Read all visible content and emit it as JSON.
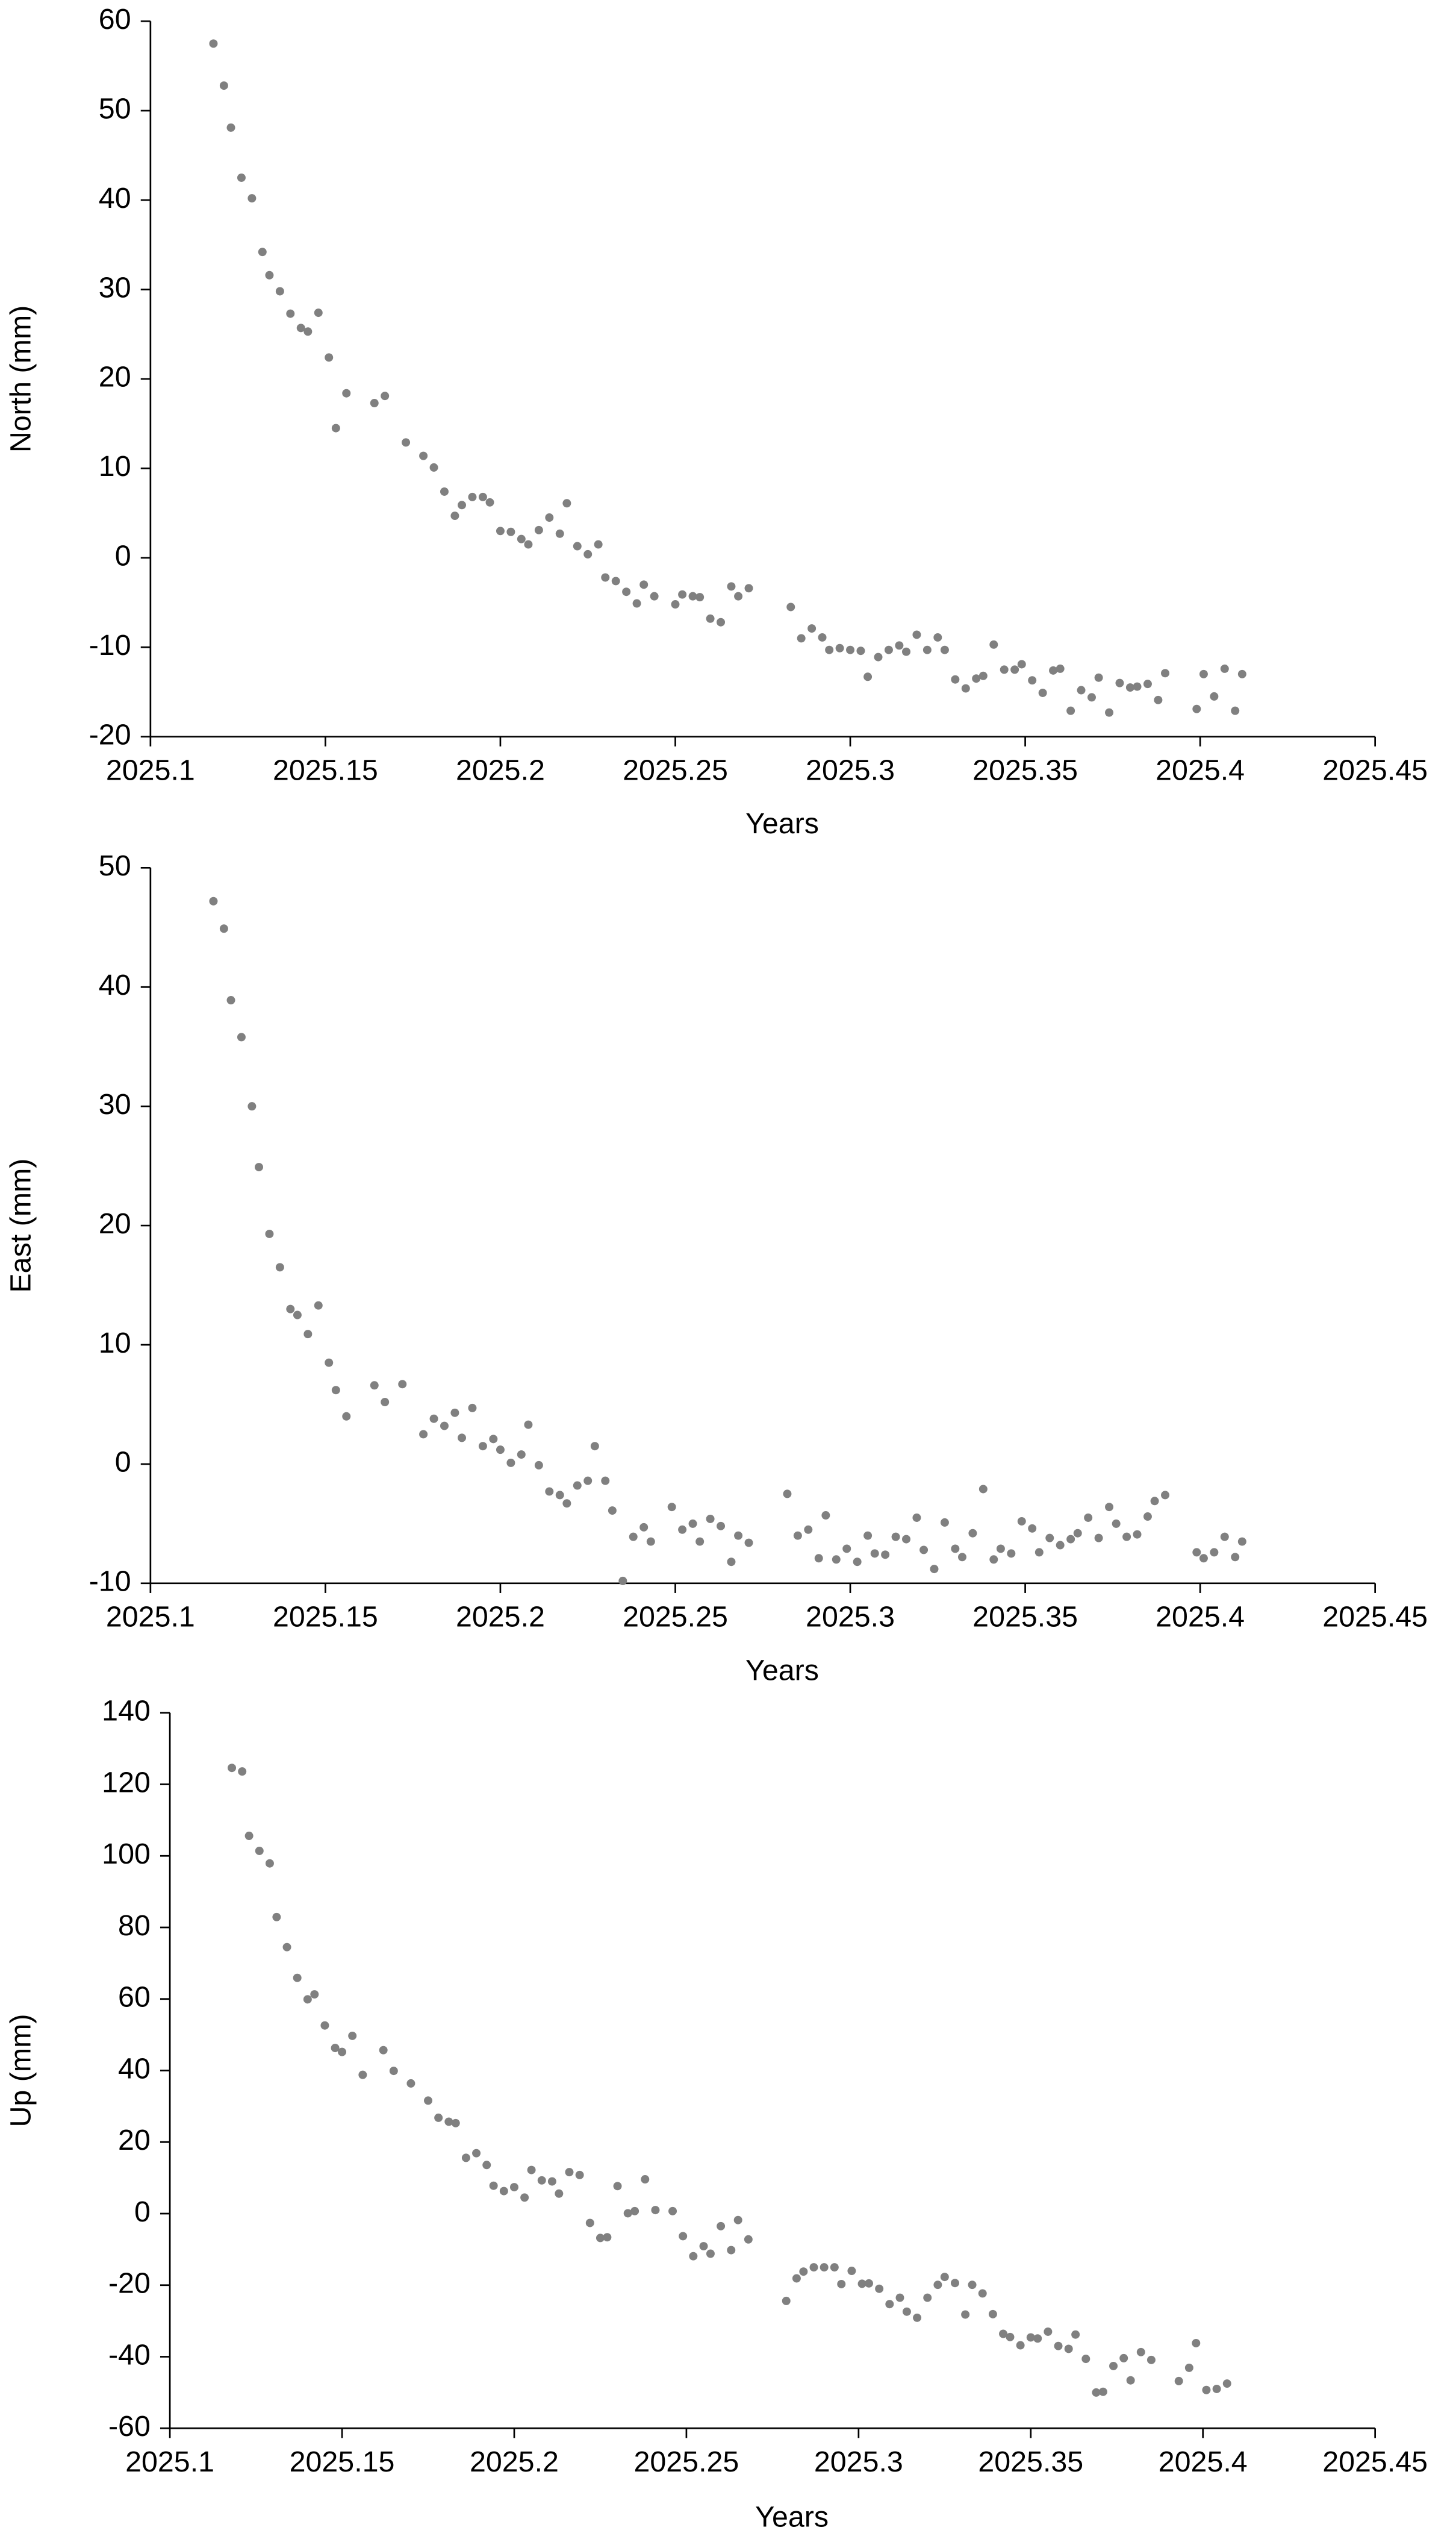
{
  "chart_data": [
    {
      "type": "scatter",
      "x_label": "Years",
      "y_label": "North (mm)",
      "color": "#808080",
      "xlim": [
        2025.1,
        2025.45
      ],
      "xticks": [
        2025.1,
        2025.15,
        2025.2,
        2025.25,
        2025.3,
        2025.35,
        2025.4,
        2025.45
      ],
      "ylim": [
        -20,
        60
      ],
      "yticks": [
        -20,
        -10,
        0,
        10,
        20,
        30,
        40,
        50,
        60
      ],
      "x": [
        2025.118,
        2025.121,
        2025.123,
        2025.126,
        2025.129,
        2025.132,
        2025.134,
        2025.137,
        2025.14,
        2025.143,
        2025.145,
        2025.148,
        2025.151,
        2025.153,
        2025.156,
        2025.164,
        2025.167,
        2025.173,
        2025.178,
        2025.181,
        2025.184,
        2025.187,
        2025.189,
        2025.192,
        2025.195,
        2025.197,
        2025.2,
        2025.203,
        2025.206,
        2025.208,
        2025.211,
        2025.214,
        2025.217,
        2025.219,
        2025.222,
        2025.225,
        2025.228,
        2025.23,
        2025.233,
        2025.236,
        2025.239,
        2025.241,
        2025.244,
        2025.25,
        2025.252,
        2025.255,
        2025.257,
        2025.26,
        2025.263,
        2025.266,
        2025.268,
        2025.271,
        2025.283,
        2025.286,
        2025.289,
        2025.292,
        2025.294,
        2025.297,
        2025.3,
        2025.303,
        2025.305,
        2025.308,
        2025.311,
        2025.314,
        2025.316,
        2025.319,
        2025.322,
        2025.325,
        2025.327,
        2025.33,
        2025.333,
        2025.336,
        2025.338,
        2025.341,
        2025.344,
        2025.347,
        2025.349,
        2025.352,
        2025.355,
        2025.358,
        2025.36,
        2025.363,
        2025.366,
        2025.369,
        2025.371,
        2025.374,
        2025.377,
        2025.38,
        2025.382,
        2025.385,
        2025.388,
        2025.39,
        2025.399,
        2025.401,
        2025.404,
        2025.407,
        2025.41,
        2025.412
      ],
      "values": [
        57.5,
        52.8,
        48.1,
        42.5,
        40.2,
        34.2,
        31.6,
        29.8,
        27.3,
        25.7,
        25.3,
        27.4,
        22.4,
        14.5,
        18.4,
        17.3,
        18.1,
        12.9,
        11.4,
        10.1,
        7.4,
        4.7,
        5.9,
        6.8,
        6.8,
        6.2,
        3.0,
        2.9,
        2.1,
        1.5,
        3.1,
        4.5,
        2.7,
        6.1,
        1.3,
        0.4,
        1.5,
        -2.2,
        -2.6,
        -3.8,
        -5.1,
        -3.0,
        -4.3,
        -5.2,
        -4.1,
        -4.3,
        -4.4,
        -6.8,
        -7.2,
        -3.2,
        -4.3,
        -3.4,
        -5.5,
        -9.0,
        -7.9,
        -8.9,
        -10.3,
        -10.1,
        -10.3,
        -10.4,
        -13.3,
        -11.1,
        -10.3,
        -9.8,
        -10.5,
        -8.6,
        -10.3,
        -8.9,
        -10.3,
        -13.6,
        -14.6,
        -13.5,
        -13.2,
        -9.7,
        -12.5,
        -12.5,
        -11.9,
        -13.7,
        -15.1,
        -12.6,
        -12.4,
        -17.1,
        -14.8,
        -15.6,
        -13.4,
        -17.3,
        -14.0,
        -14.5,
        -14.4,
        -14.1,
        -15.9,
        -12.9,
        -16.9,
        -13.0,
        -15.5,
        -12.4,
        -17.1,
        -13.0
      ]
    },
    {
      "type": "scatter",
      "x_label": "Years",
      "y_label": "East (mm)",
      "color": "#808080",
      "xlim": [
        2025.1,
        2025.45
      ],
      "xticks": [
        2025.1,
        2025.15,
        2025.2,
        2025.25,
        2025.3,
        2025.35,
        2025.4,
        2025.45
      ],
      "ylim": [
        -10,
        50
      ],
      "yticks": [
        -10,
        0,
        10,
        20,
        30,
        40,
        50
      ],
      "x": [
        2025.118,
        2025.121,
        2025.123,
        2025.126,
        2025.129,
        2025.131,
        2025.134,
        2025.137,
        2025.14,
        2025.142,
        2025.145,
        2025.148,
        2025.151,
        2025.153,
        2025.156,
        2025.164,
        2025.167,
        2025.172,
        2025.178,
        2025.181,
        2025.184,
        2025.187,
        2025.189,
        2025.192,
        2025.195,
        2025.198,
        2025.2,
        2025.203,
        2025.206,
        2025.208,
        2025.211,
        2025.214,
        2025.217,
        2025.219,
        2025.222,
        2025.225,
        2025.227,
        2025.23,
        2025.232,
        2025.235,
        2025.238,
        2025.241,
        2025.243,
        2025.249,
        2025.252,
        2025.255,
        2025.257,
        2025.26,
        2025.263,
        2025.266,
        2025.268,
        2025.271,
        2025.282,
        2025.285,
        2025.288,
        2025.291,
        2025.293,
        2025.296,
        2025.299,
        2025.302,
        2025.305,
        2025.307,
        2025.31,
        2025.313,
        2025.316,
        2025.319,
        2025.321,
        2025.324,
        2025.327,
        2025.33,
        2025.332,
        2025.335,
        2025.338,
        2025.341,
        2025.343,
        2025.346,
        2025.349,
        2025.352,
        2025.354,
        2025.357,
        2025.36,
        2025.363,
        2025.365,
        2025.368,
        2025.371,
        2025.374,
        2025.376,
        2025.379,
        2025.382,
        2025.385,
        2025.387,
        2025.39,
        2025.399,
        2025.401,
        2025.404,
        2025.407,
        2025.41,
        2025.412
      ],
      "values": [
        47.2,
        44.9,
        38.9,
        35.8,
        30.0,
        24.9,
        19.3,
        16.5,
        13.0,
        12.5,
        10.9,
        13.3,
        8.5,
        6.2,
        4.0,
        6.6,
        5.2,
        6.7,
        2.5,
        3.8,
        3.2,
        4.3,
        2.2,
        4.7,
        1.5,
        2.1,
        1.2,
        0.1,
        0.8,
        3.3,
        -0.1,
        -2.3,
        -2.6,
        -3.3,
        -1.8,
        -1.4,
        1.5,
        -1.4,
        -3.9,
        -9.8,
        -6.1,
        -5.3,
        -6.5,
        -3.6,
        -5.5,
        -5.0,
        -6.5,
        -4.6,
        -5.2,
        -8.2,
        -6.0,
        -6.6,
        -2.5,
        -6.0,
        -5.5,
        -7.9,
        -4.3,
        -8.0,
        -7.1,
        -8.2,
        -6.0,
        -7.5,
        -7.6,
        -6.1,
        -6.3,
        -4.5,
        -7.2,
        -8.8,
        -4.9,
        -7.1,
        -7.8,
        -5.8,
        -2.1,
        -8.0,
        -7.1,
        -7.5,
        -4.8,
        -5.4,
        -7.4,
        -6.2,
        -6.8,
        -6.3,
        -5.8,
        -4.5,
        -6.2,
        -3.6,
        -5.0,
        -6.1,
        -5.9,
        -4.4,
        -3.1,
        -2.6,
        -7.4,
        -7.9,
        -7.4,
        -6.1,
        -7.8,
        -6.5
      ]
    },
    {
      "type": "scatter",
      "x_label": "Years",
      "y_label": "Up (mm)",
      "color": "#808080",
      "xlim": [
        2025.1,
        2025.45
      ],
      "xticks": [
        2025.1,
        2025.15,
        2025.2,
        2025.25,
        2025.3,
        2025.35,
        2025.4,
        2025.45
      ],
      "ylim": [
        -60,
        140
      ],
      "yticks": [
        -60,
        -40,
        -20,
        0,
        20,
        40,
        60,
        80,
        100,
        120,
        140
      ],
      "x": [
        2025.118,
        2025.121,
        2025.123,
        2025.126,
        2025.129,
        2025.131,
        2025.134,
        2025.137,
        2025.14,
        2025.142,
        2025.145,
        2025.148,
        2025.15,
        2025.153,
        2025.156,
        2025.162,
        2025.165,
        2025.17,
        2025.175,
        2025.178,
        2025.181,
        2025.183,
        2025.186,
        2025.189,
        2025.192,
        2025.194,
        2025.197,
        2025.2,
        2025.203,
        2025.205,
        2025.208,
        2025.211,
        2025.213,
        2025.216,
        2025.219,
        2025.222,
        2025.225,
        2025.227,
        2025.23,
        2025.233,
        2025.235,
        2025.238,
        2025.241,
        2025.246,
        2025.249,
        2025.252,
        2025.255,
        2025.257,
        2025.26,
        2025.263,
        2025.265,
        2025.268,
        2025.279,
        2025.282,
        2025.284,
        2025.287,
        2025.29,
        2025.293,
        2025.295,
        2025.298,
        2025.301,
        2025.303,
        2025.306,
        2025.309,
        2025.312,
        2025.314,
        2025.317,
        2025.32,
        2025.323,
        2025.325,
        2025.328,
        2025.331,
        2025.333,
        2025.336,
        2025.339,
        2025.342,
        2025.344,
        2025.347,
        2025.35,
        2025.352,
        2025.355,
        2025.358,
        2025.361,
        2025.363,
        2025.366,
        2025.369,
        2025.371,
        2025.374,
        2025.377,
        2025.379,
        2025.382,
        2025.385,
        2025.393,
        2025.396,
        2025.398,
        2025.401,
        2025.404,
        2025.407
      ],
      "values": [
        124.6,
        123.6,
        105.6,
        101.4,
        97.9,
        82.9,
        74.5,
        65.9,
        59.9,
        61.3,
        52.6,
        46.3,
        45.2,
        49.7,
        38.8,
        45.7,
        39.9,
        36.4,
        31.6,
        26.8,
        25.7,
        25.3,
        15.6,
        16.9,
        13.6,
        7.8,
        6.3,
        7.4,
        4.5,
        12.2,
        9.3,
        9.0,
        5.6,
        11.6,
        10.8,
        -2.6,
        -6.8,
        -6.6,
        7.7,
        0.1,
        0.7,
        9.6,
        1.0,
        0.7,
        -6.3,
        -11.9,
        -9.1,
        -11.2,
        -3.5,
        -10.2,
        -1.8,
        -7.2,
        -24.4,
        -18.1,
        -16.2,
        -15.0,
        -15.0,
        -15.0,
        -19.7,
        -16.0,
        -19.6,
        -19.5,
        -21.0,
        -25.3,
        -23.5,
        -27.4,
        -29.1,
        -23.5,
        -19.9,
        -17.7,
        -19.4,
        -28.2,
        -19.9,
        -22.3,
        -28.1,
        -33.6,
        -34.5,
        -36.8,
        -34.6,
        -34.9,
        -33.0,
        -37.0,
        -37.8,
        -33.8,
        -40.6,
        -50.0,
        -49.8,
        -42.6,
        -40.4,
        -46.6,
        -38.7,
        -40.9,
        -46.8,
        -43.1,
        -36.2,
        -49.3,
        -49.0,
        -47.5
      ]
    }
  ]
}
